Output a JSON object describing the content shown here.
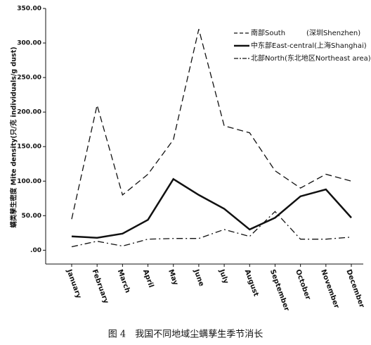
{
  "chart_data": {
    "type": "line",
    "caption": "图 4　我国不同地域尘螨孳生季节消长",
    "y_label": "螨类孳生密度 Mite density(只/克 individuals/g dust)",
    "categories": [
      "January",
      "February",
      "March",
      "April",
      "May",
      "June",
      "July",
      "August",
      "September",
      "October",
      "November",
      "December"
    ],
    "series": [
      {
        "name": "南部South　　　(深圳Shenzhen)",
        "color": "#111111",
        "dash": "dashed",
        "values": [
          45,
          210,
          80,
          110,
          160,
          320,
          180,
          170,
          115,
          90,
          110,
          100
        ]
      },
      {
        "name": "中东部East-central(上海Shanghai)",
        "color": "#111111",
        "dash": "solid",
        "values": [
          20,
          18,
          24,
          44,
          103,
          80,
          60,
          30,
          47,
          78,
          88,
          47
        ]
      },
      {
        "name": "北部North(东北地区Northeast area)",
        "color": "#111111",
        "dash": "dashdot",
        "values": [
          5,
          13,
          6,
          16,
          17,
          17,
          30,
          20,
          56,
          16,
          16,
          19
        ]
      }
    ],
    "ylim": [
      -20,
      350
    ],
    "yticks": [
      {
        "value": 0,
        "label": ".00"
      },
      {
        "value": 50,
        "label": "50.00"
      },
      {
        "value": 100,
        "label": "100.00"
      },
      {
        "value": 150,
        "label": "150.00"
      },
      {
        "value": 200,
        "label": "200.00"
      },
      {
        "value": 250,
        "label": "250.00"
      },
      {
        "value": 300,
        "label": "300.00"
      },
      {
        "value": 350,
        "label": "350.00"
      }
    ],
    "legend": "top-right"
  }
}
